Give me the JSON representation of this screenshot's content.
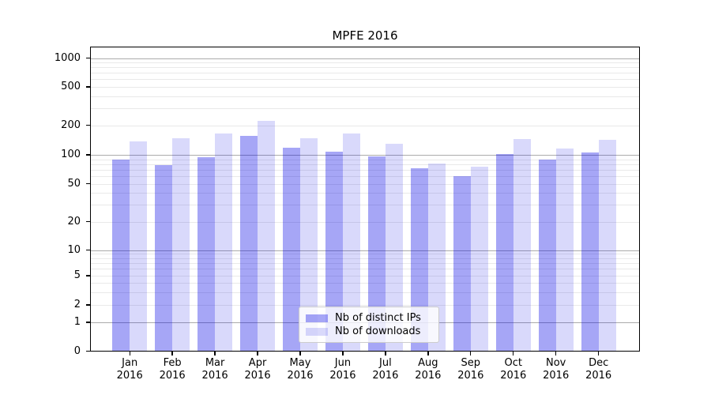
{
  "chart_data": {
    "type": "bar",
    "title": "MPFE 2016",
    "y_scale": "symlog",
    "grid": true,
    "legend_position": "bottom-center",
    "categories": [
      "Jan",
      "Feb",
      "Mar",
      "Apr",
      "May",
      "Jun",
      "Jul",
      "Aug",
      "Sep",
      "Oct",
      "Nov",
      "Dec"
    ],
    "x_year_label": "2016",
    "y_ticks": [
      0,
      1,
      2,
      5,
      10,
      20,
      50,
      100,
      200,
      500,
      1000
    ],
    "ylim": [
      0,
      1300
    ],
    "series": [
      {
        "name": "Nb of distinct IPs",
        "color": "rgba(0,0,230,0.35)",
        "values": [
          90,
          78,
          95,
          157,
          118,
          108,
          96,
          72,
          60,
          101,
          90,
          106
        ]
      },
      {
        "name": "Nb of downloads",
        "color": "rgba(0,0,230,0.15)",
        "values": [
          137,
          149,
          166,
          222,
          149,
          164,
          130,
          81,
          75,
          146,
          116,
          142
        ]
      }
    ]
  },
  "colors": {
    "bar_distinct_ips": "rgba(0,0,230,0.35)",
    "bar_downloads": "rgba(0,0,230,0.15)",
    "grid_major": "#ababab",
    "grid_minor": "#e9e9e9",
    "axis": "#000000",
    "legend_border": "#cccccc"
  }
}
